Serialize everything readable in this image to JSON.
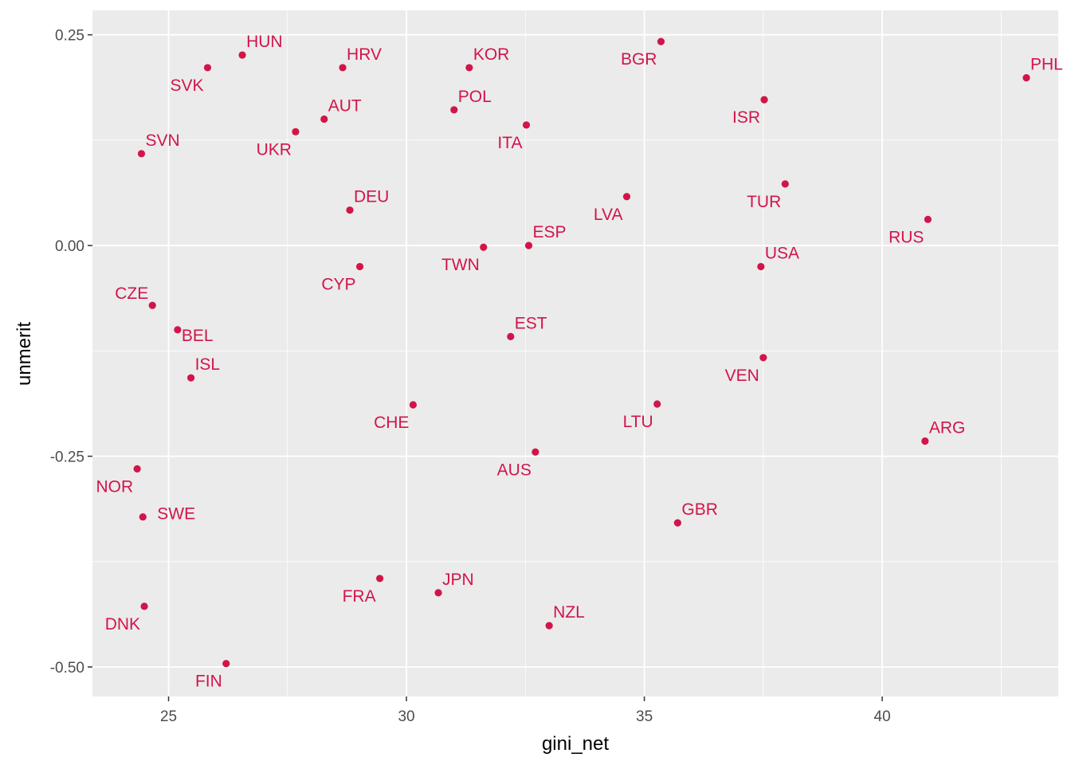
{
  "chart_data": {
    "type": "scatter",
    "title": "",
    "xlabel": "gini_net",
    "ylabel": "unmerit",
    "xlim": [
      23.4,
      43.7
    ],
    "ylim": [
      -0.535,
      0.279
    ],
    "x_ticks": [
      25,
      30,
      35,
      40
    ],
    "y_ticks": [
      -0.5,
      -0.25,
      0.0,
      0.25
    ],
    "x_tick_labels": [
      "25",
      "30",
      "35",
      "40"
    ],
    "y_tick_labels": [
      "-0.50",
      "-0.25",
      "0.00",
      "0.25"
    ],
    "grid": true,
    "legend": "none",
    "colors": {
      "panel_background": "#ebebeb",
      "grid_major": "#ffffff",
      "point": "#d1154a",
      "label": "#d1154a"
    },
    "points": [
      {
        "label": "HUN",
        "x": 26.55,
        "y": 0.226
      },
      {
        "label": "SVK",
        "x": 25.82,
        "y": 0.211
      },
      {
        "label": "HRV",
        "x": 28.66,
        "y": 0.211
      },
      {
        "label": "KOR",
        "x": 31.32,
        "y": 0.211
      },
      {
        "label": "BGR",
        "x": 35.35,
        "y": 0.242
      },
      {
        "label": "PHL",
        "x": 43.03,
        "y": 0.199
      },
      {
        "label": "AUT",
        "x": 28.27,
        "y": 0.15
      },
      {
        "label": "POL",
        "x": 31.0,
        "y": 0.161
      },
      {
        "label": "ISR",
        "x": 37.52,
        "y": 0.173
      },
      {
        "label": "UKR",
        "x": 27.67,
        "y": 0.135
      },
      {
        "label": "ITA",
        "x": 32.52,
        "y": 0.143
      },
      {
        "label": "SVN",
        "x": 24.43,
        "y": 0.109
      },
      {
        "label": "DEU",
        "x": 28.81,
        "y": 0.042
      },
      {
        "label": "LVA",
        "x": 34.63,
        "y": 0.058
      },
      {
        "label": "TUR",
        "x": 37.96,
        "y": 0.073
      },
      {
        "label": "RUS",
        "x": 40.96,
        "y": 0.031
      },
      {
        "label": "ESP",
        "x": 32.57,
        "y": 0.0
      },
      {
        "label": "TWN",
        "x": 31.62,
        "y": -0.002
      },
      {
        "label": "USA",
        "x": 37.45,
        "y": -0.025
      },
      {
        "label": "CYP",
        "x": 29.02,
        "y": -0.025
      },
      {
        "label": "CZE",
        "x": 24.66,
        "y": -0.071
      },
      {
        "label": "BEL",
        "x": 25.19,
        "y": -0.1
      },
      {
        "label": "EST",
        "x": 32.19,
        "y": -0.108
      },
      {
        "label": "ISL",
        "x": 25.47,
        "y": -0.157
      },
      {
        "label": "VEN",
        "x": 37.5,
        "y": -0.133
      },
      {
        "label": "CHE",
        "x": 30.14,
        "y": -0.189
      },
      {
        "label": "LTU",
        "x": 35.27,
        "y": -0.188
      },
      {
        "label": "ARG",
        "x": 40.9,
        "y": -0.232
      },
      {
        "label": "AUS",
        "x": 32.71,
        "y": -0.245
      },
      {
        "label": "NOR",
        "x": 24.34,
        "y": -0.265
      },
      {
        "label": "SWE",
        "x": 24.46,
        "y": -0.322
      },
      {
        "label": "GBR",
        "x": 35.7,
        "y": -0.329
      },
      {
        "label": "FRA",
        "x": 29.44,
        "y": -0.395
      },
      {
        "label": "JPN",
        "x": 30.67,
        "y": -0.412
      },
      {
        "label": "NZL",
        "x": 33.0,
        "y": -0.451
      },
      {
        "label": "DNK",
        "x": 24.49,
        "y": -0.428
      },
      {
        "label": "FIN",
        "x": 26.21,
        "y": -0.496
      }
    ]
  }
}
